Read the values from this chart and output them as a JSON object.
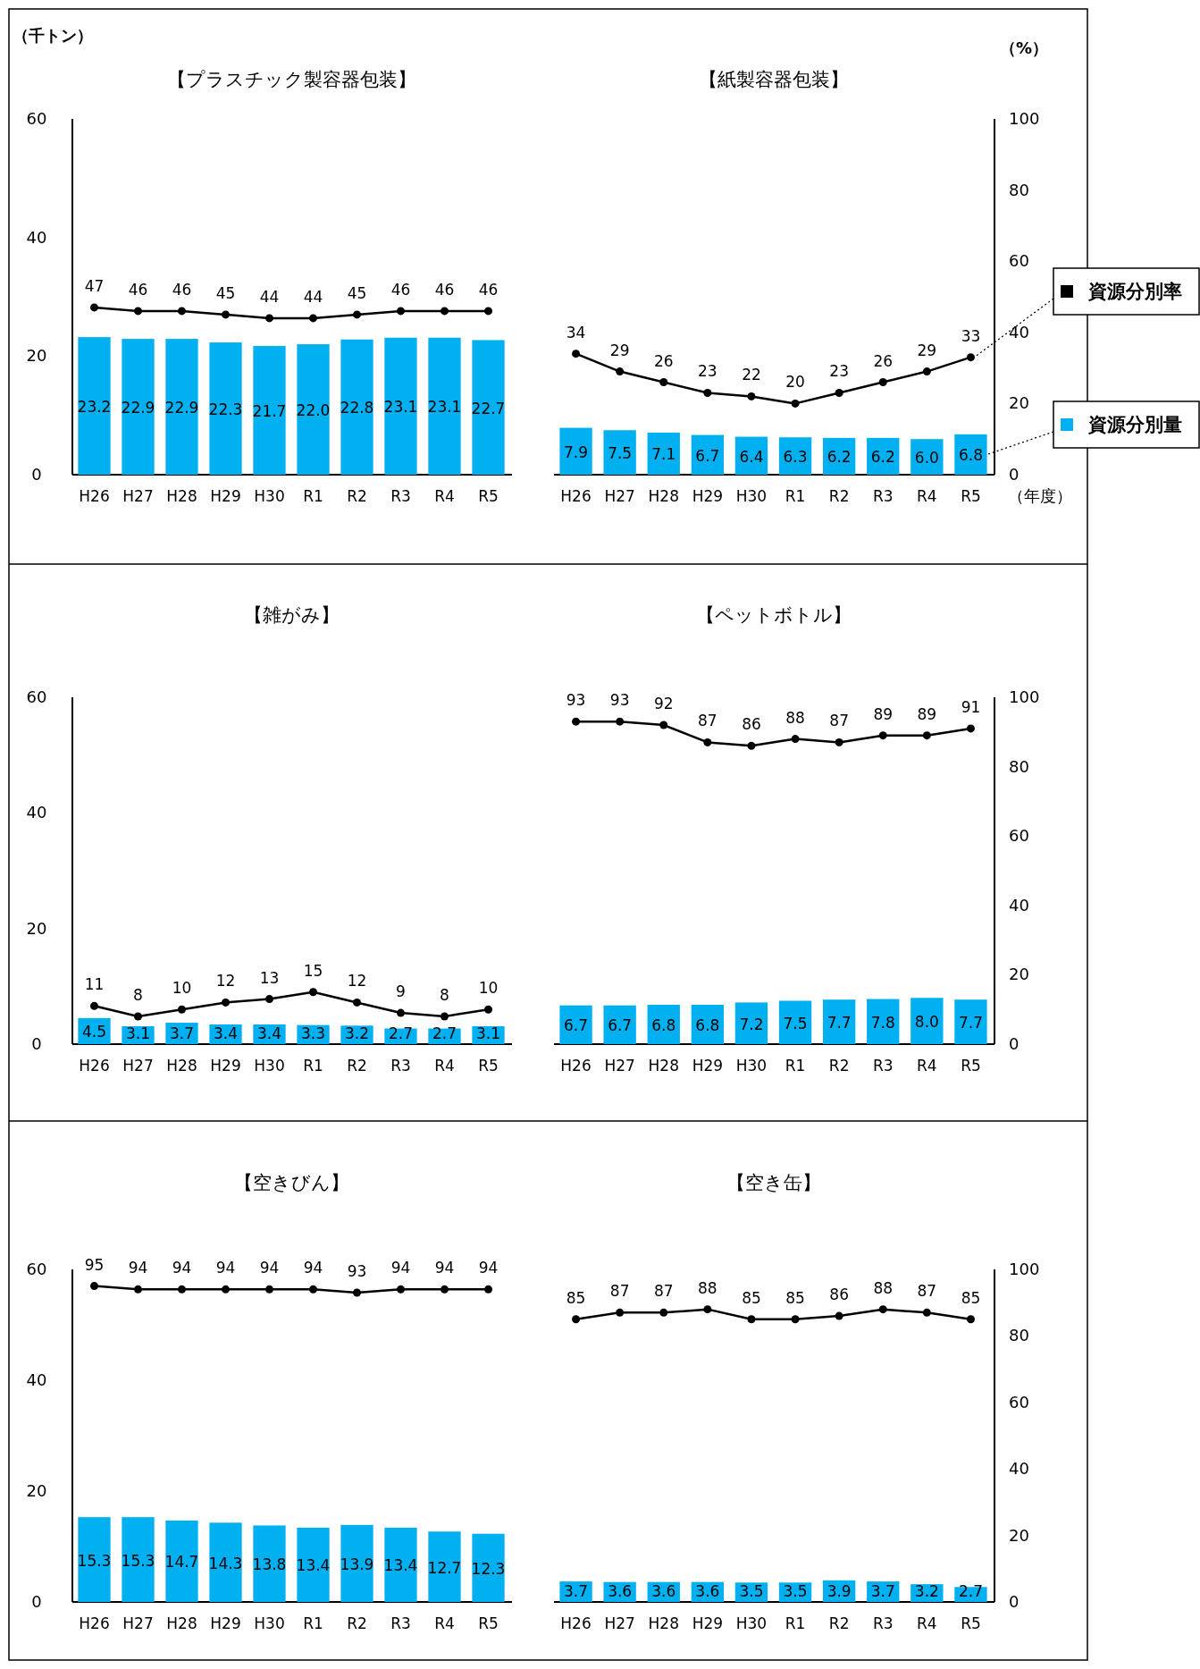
{
  "chart_data": [
    {
      "type": "bar",
      "title": "【プラスチック製容器包装】",
      "ylabel": "（千トン）",
      "categories": [
        "H26",
        "H27",
        "H28",
        "H29",
        "H30",
        "R1",
        "R2",
        "R3",
        "R4",
        "R5"
      ],
      "ylim": [
        0,
        60
      ],
      "yticks": [
        0,
        20,
        40,
        60
      ],
      "y2lim": [
        0,
        100
      ],
      "tick_labels": [
        "x",
        "y"
      ],
      "data_labels": true,
      "marker": "circle",
      "series": [
        {
          "color": "#00b0f0",
          "values": [
            23.2,
            22.9,
            22.9,
            22.3,
            21.7,
            22.0,
            22.8,
            23.1,
            23.1,
            22.7
          ],
          "value_labels": [
            "23.2",
            "22.9",
            "22.9",
            "22.3",
            "21.7",
            "22.0",
            "22.8",
            "23.1",
            "23.1",
            "22.7"
          ]
        },
        {
          "type": "line",
          "axis": "y2",
          "color": "#000000",
          "values": [
            47,
            46,
            46,
            45,
            44,
            44,
            45,
            46,
            46,
            46
          ]
        }
      ]
    },
    {
      "type": "bar",
      "title": "【紙製容器包装】",
      "y2label": "（%）",
      "xlabel": "（年度）",
      "categories": [
        "H26",
        "H27",
        "H28",
        "H29",
        "H30",
        "R1",
        "R2",
        "R3",
        "R4",
        "R5"
      ],
      "ylim": [
        0,
        60
      ],
      "y2lim": [
        0,
        100
      ],
      "y2ticks": [
        0,
        20,
        40,
        60,
        80,
        100
      ],
      "tick_labels": [
        "x",
        "y2"
      ],
      "data_labels": true,
      "marker": "circle",
      "legend": "right",
      "series": [
        {
          "type": "line",
          "axis": "y2",
          "name": "資源分別率",
          "color": "#000000",
          "values": [
            34,
            29,
            26,
            23,
            22,
            20,
            23,
            26,
            29,
            33
          ]
        },
        {
          "name": "資源分別量",
          "color": "#00b0f0",
          "values": [
            7.9,
            7.5,
            7.1,
            6.7,
            6.4,
            6.3,
            6.2,
            6.2,
            6.0,
            6.8
          ],
          "value_labels": [
            "7.9",
            "7.5",
            "7.1",
            "6.7",
            "6.4",
            "6.3",
            "6.2",
            "6.2",
            "6.0",
            "6.8"
          ]
        }
      ]
    },
    {
      "type": "bar",
      "title": "【雑がみ】",
      "categories": [
        "H26",
        "H27",
        "H28",
        "H29",
        "H30",
        "R1",
        "R2",
        "R3",
        "R4",
        "R5"
      ],
      "ylim": [
        0,
        60
      ],
      "yticks": [
        0,
        20,
        40,
        60
      ],
      "y2lim": [
        0,
        100
      ],
      "tick_labels": [
        "x",
        "y"
      ],
      "data_labels": true,
      "marker": "circle",
      "series": [
        {
          "color": "#00b0f0",
          "values": [
            4.5,
            3.1,
            3.7,
            3.4,
            3.4,
            3.3,
            3.2,
            2.7,
            2.7,
            3.1
          ]
        },
        {
          "type": "line",
          "axis": "y2",
          "color": "#000000",
          "values": [
            11,
            8,
            10,
            12,
            13,
            15,
            12,
            9,
            8,
            10
          ]
        }
      ]
    },
    {
      "type": "bar",
      "title": "【ペットボトル】",
      "categories": [
        "H26",
        "H27",
        "H28",
        "H29",
        "H30",
        "R1",
        "R2",
        "R3",
        "R4",
        "R5"
      ],
      "ylim": [
        0,
        60
      ],
      "y2lim": [
        0,
        100
      ],
      "y2ticks": [
        0,
        20,
        40,
        60,
        80,
        100
      ],
      "tick_labels": [
        "x",
        "y2"
      ],
      "data_labels": true,
      "marker": "circle",
      "series": [
        {
          "color": "#00b0f0",
          "values": [
            6.7,
            6.7,
            6.8,
            6.8,
            7.2,
            7.5,
            7.7,
            7.8,
            8.0,
            7.7
          ],
          "value_labels": [
            "6.7",
            "6.7",
            "6.8",
            "6.8",
            "7.2",
            "7.5",
            "7.7",
            "7.8",
            "8.0",
            "7.7"
          ]
        },
        {
          "type": "line",
          "axis": "y2",
          "color": "#000000",
          "values": [
            93,
            93,
            92,
            87,
            86,
            88,
            87,
            89,
            89,
            91
          ]
        }
      ]
    },
    {
      "type": "bar",
      "title": "【空きびん】",
      "categories": [
        "H26",
        "H27",
        "H28",
        "H29",
        "H30",
        "R1",
        "R2",
        "R3",
        "R4",
        "R5"
      ],
      "ylim": [
        0,
        60
      ],
      "yticks": [
        0,
        20,
        40,
        60
      ],
      "y2lim": [
        0,
        100
      ],
      "tick_labels": [
        "x",
        "y"
      ],
      "data_labels": true,
      "marker": "circle",
      "series": [
        {
          "color": "#00b0f0",
          "values": [
            15.3,
            15.3,
            14.7,
            14.3,
            13.8,
            13.4,
            13.9,
            13.4,
            12.7,
            12.3
          ]
        },
        {
          "type": "line",
          "axis": "y2",
          "color": "#000000",
          "values": [
            95,
            94,
            94,
            94,
            94,
            94,
            93,
            94,
            94,
            94
          ]
        }
      ]
    },
    {
      "type": "bar",
      "title": "【空き缶】",
      "categories": [
        "H26",
        "H27",
        "H28",
        "H29",
        "H30",
        "R1",
        "R2",
        "R3",
        "R4",
        "R5"
      ],
      "ylim": [
        0,
        60
      ],
      "y2lim": [
        0,
        100
      ],
      "y2ticks": [
        0,
        20,
        40,
        60,
        80,
        100
      ],
      "tick_labels": [
        "x",
        "y2"
      ],
      "data_labels": true,
      "marker": "circle",
      "series": [
        {
          "color": "#00b0f0",
          "values": [
            3.7,
            3.6,
            3.6,
            3.6,
            3.5,
            3.5,
            3.9,
            3.7,
            3.2,
            2.7
          ]
        },
        {
          "type": "line",
          "axis": "y2",
          "color": "#000000",
          "values": [
            85,
            87,
            87,
            88,
            85,
            85,
            86,
            88,
            87,
            85
          ]
        }
      ]
    }
  ]
}
